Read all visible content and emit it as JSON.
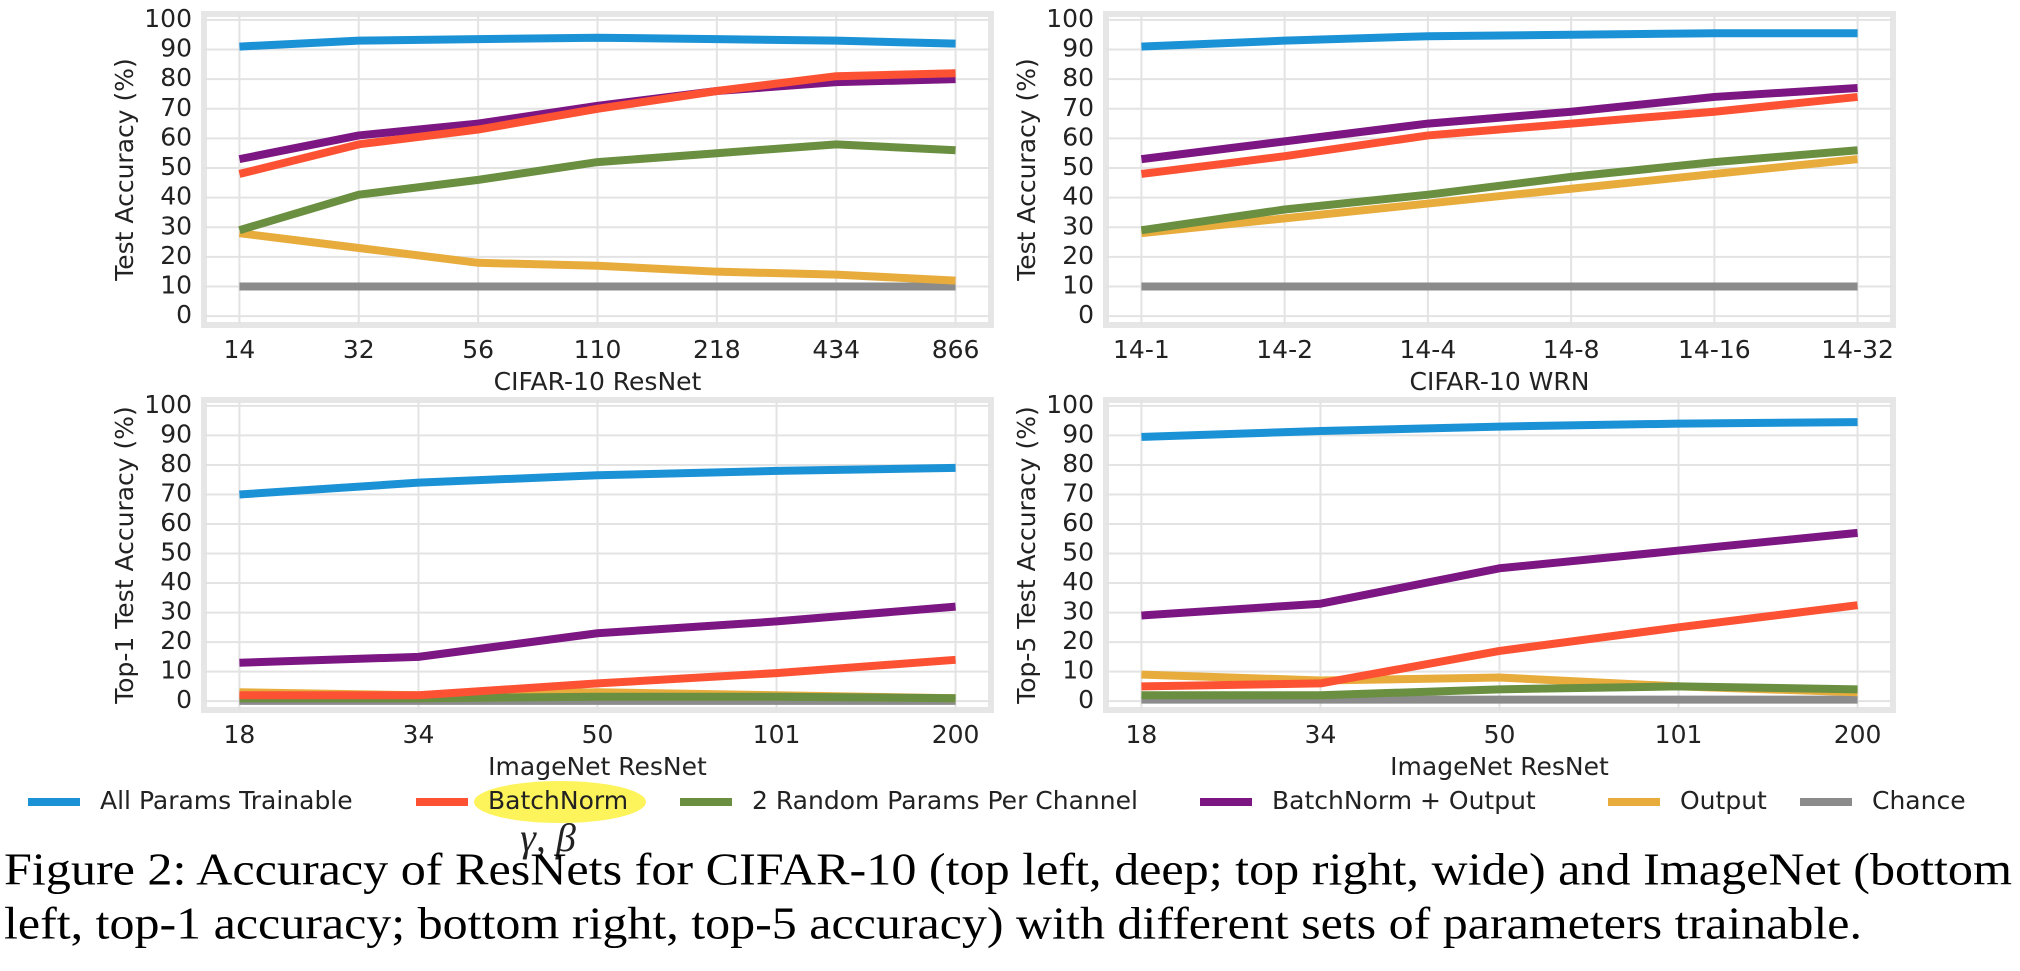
{
  "chart_data": [
    {
      "type": "line",
      "xlabel": "CIFAR-10 ResNet",
      "ylabel": "Test Accuracy (%)",
      "categories": [
        "14",
        "32",
        "56",
        "110",
        "218",
        "434",
        "866"
      ],
      "ylim": [
        -3,
        102
      ],
      "yticks": [
        0,
        10,
        20,
        30,
        40,
        50,
        60,
        70,
        80,
        90,
        100
      ],
      "grid": true,
      "series": [
        {
          "name": "All Params Trainable",
          "color": "#1b92d5",
          "values": [
            91,
            93,
            93.5,
            94,
            93.5,
            93,
            92
          ]
        },
        {
          "name": "BatchNorm",
          "color": "#fc5233",
          "values": [
            48,
            58,
            63,
            70,
            76,
            81,
            82
          ]
        },
        {
          "name": "2 Random Params Per Channel",
          "color": "#6a8f40",
          "values": [
            29,
            41,
            46,
            52,
            55,
            58,
            56
          ]
        },
        {
          "name": "BatchNorm + Output",
          "color": "#7b1682",
          "values": [
            53,
            61,
            65,
            71,
            76,
            79,
            80
          ]
        },
        {
          "name": "Output",
          "color": "#e7ac3c",
          "values": [
            28,
            23,
            18,
            17,
            15,
            14,
            12
          ]
        },
        {
          "name": "Chance",
          "color": "#8b8b8b",
          "values": [
            10,
            10,
            10,
            10,
            10,
            10,
            10
          ]
        }
      ]
    },
    {
      "type": "line",
      "xlabel": "CIFAR-10 WRN",
      "ylabel": "Test Accuracy (%)",
      "categories": [
        "14-1",
        "14-2",
        "14-4",
        "14-8",
        "14-16",
        "14-32"
      ],
      "ylim": [
        -3,
        102
      ],
      "yticks": [
        0,
        10,
        20,
        30,
        40,
        50,
        60,
        70,
        80,
        90,
        100
      ],
      "grid": true,
      "series": [
        {
          "name": "All Params Trainable",
          "color": "#1b92d5",
          "values": [
            91,
            93,
            94.5,
            95,
            95.5,
            95.5
          ]
        },
        {
          "name": "BatchNorm",
          "color": "#fc5233",
          "values": [
            48,
            54,
            61,
            65,
            69,
            74
          ]
        },
        {
          "name": "2 Random Params Per Channel",
          "color": "#6a8f40",
          "values": [
            29,
            36,
            41,
            47,
            52,
            56
          ]
        },
        {
          "name": "BatchNorm + Output",
          "color": "#7b1682",
          "values": [
            53,
            59,
            65,
            69,
            74,
            77
          ]
        },
        {
          "name": "Output",
          "color": "#e7ac3c",
          "values": [
            28,
            33,
            38,
            43,
            48,
            53
          ]
        },
        {
          "name": "Chance",
          "color": "#8b8b8b",
          "values": [
            10,
            10,
            10,
            10,
            10,
            10
          ]
        }
      ]
    },
    {
      "type": "line",
      "xlabel": "ImageNet ResNet",
      "ylabel": "Top-1 Test Accuracy (%)",
      "categories": [
        "18",
        "34",
        "50",
        "101",
        "200"
      ],
      "ylim": [
        -3,
        102
      ],
      "yticks": [
        0,
        10,
        20,
        30,
        40,
        50,
        60,
        70,
        80,
        90,
        100
      ],
      "grid": true,
      "series": [
        {
          "name": "All Params Trainable",
          "color": "#1b92d5",
          "values": [
            70,
            74,
            76.5,
            78,
            79
          ]
        },
        {
          "name": "BatchNorm",
          "color": "#fc5233",
          "values": [
            2,
            2,
            6,
            9.5,
            14
          ]
        },
        {
          "name": "2 Random Params Per Channel",
          "color": "#6a8f40",
          "values": [
            1,
            1,
            1.5,
            1.5,
            1
          ]
        },
        {
          "name": "BatchNorm + Output",
          "color": "#7b1682",
          "values": [
            13,
            15,
            23,
            27,
            32
          ]
        },
        {
          "name": "Output",
          "color": "#e7ac3c",
          "values": [
            3,
            2,
            3,
            2,
            1
          ]
        },
        {
          "name": "Chance",
          "color": "#8b8b8b",
          "values": [
            0.1,
            0.1,
            0.1,
            0.1,
            0.1
          ]
        }
      ]
    },
    {
      "type": "line",
      "xlabel": "ImageNet ResNet",
      "ylabel": "Top-5 Test Accuracy (%)",
      "categories": [
        "18",
        "34",
        "50",
        "101",
        "200"
      ],
      "ylim": [
        -3,
        102
      ],
      "yticks": [
        0,
        10,
        20,
        30,
        40,
        50,
        60,
        70,
        80,
        90,
        100
      ],
      "grid": true,
      "series": [
        {
          "name": "All Params Trainable",
          "color": "#1b92d5",
          "values": [
            89.5,
            91.5,
            93,
            94,
            94.5
          ]
        },
        {
          "name": "BatchNorm",
          "color": "#fc5233",
          "values": [
            5,
            6,
            17,
            25,
            32.5
          ]
        },
        {
          "name": "2 Random Params Per Channel",
          "color": "#6a8f40",
          "values": [
            2,
            2,
            4,
            5,
            4
          ]
        },
        {
          "name": "BatchNorm + Output",
          "color": "#7b1682",
          "values": [
            29,
            33,
            45,
            51,
            57
          ]
        },
        {
          "name": "Output",
          "color": "#e7ac3c",
          "values": [
            9,
            7,
            8,
            5,
            3
          ]
        },
        {
          "name": "Chance",
          "color": "#8b8b8b",
          "values": [
            0.5,
            0.5,
            0.5,
            0.5,
            0.5
          ]
        }
      ]
    }
  ],
  "annotation": "γ, β",
  "caption": [
    "Figure 2: Accuracy of ResNets for CIFAR-10 (top left, deep; top right, wide) and ImageNet (bottom",
    "left, top-1 accuracy; bottom right, top-5 accuracy) with different sets of parameters trainable."
  ]
}
